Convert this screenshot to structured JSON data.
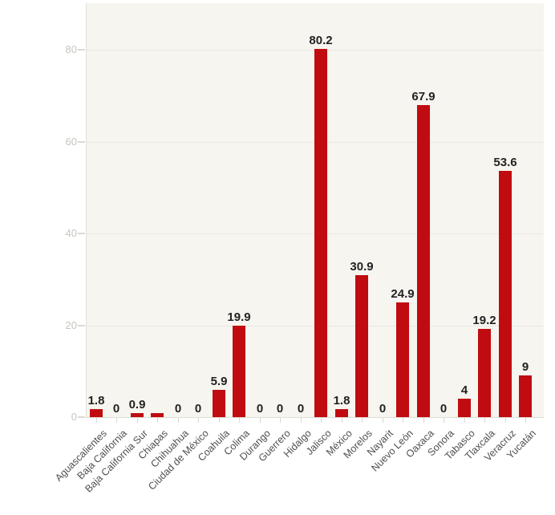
{
  "chart_data": {
    "type": "bar",
    "title": "",
    "xlabel": "",
    "ylabel": "",
    "categories": [
      "Aguascalientes",
      "Baja California",
      "Baja California Sur",
      "Chiapas",
      "Chihuahua",
      "Ciudad de México",
      "Coahuila",
      "Colima",
      "Durango",
      "Guerrero",
      "Hidalgo",
      "Jalisco",
      "México",
      "Morelos",
      "Nayarit",
      "Nuevo León",
      "Oaxaca",
      "Sonora",
      "Tabasco",
      "Tlaxcala",
      "Veracruz",
      "Yucatán"
    ],
    "values": [
      1.8,
      0,
      0.9,
      0.9,
      0,
      0,
      5.9,
      19.9,
      0,
      0,
      0,
      80.2,
      1.8,
      30.9,
      0,
      24.9,
      67.9,
      0,
      4,
      19.2,
      53.6,
      9
    ],
    "value_labels": [
      "1.8",
      "0",
      "0.9",
      "",
      "0",
      "0",
      "5.9",
      "19.9",
      "0",
      "0",
      "0",
      "80.2",
      "1.8",
      "30.9",
      "0",
      "24.9",
      "67.9",
      "0",
      "4",
      "19.2",
      "53.6",
      "9"
    ],
    "yticks": [
      0,
      20,
      40,
      60,
      80
    ],
    "ylim": [
      0,
      90
    ],
    "grid": true,
    "legend": false,
    "bar_color": "#c00c10",
    "plot_background_color": "#f7f5f0",
    "value_label_color": "#222222",
    "x_label_color": "#4f4f4f",
    "y_label_color": "#c7c5bf"
  }
}
